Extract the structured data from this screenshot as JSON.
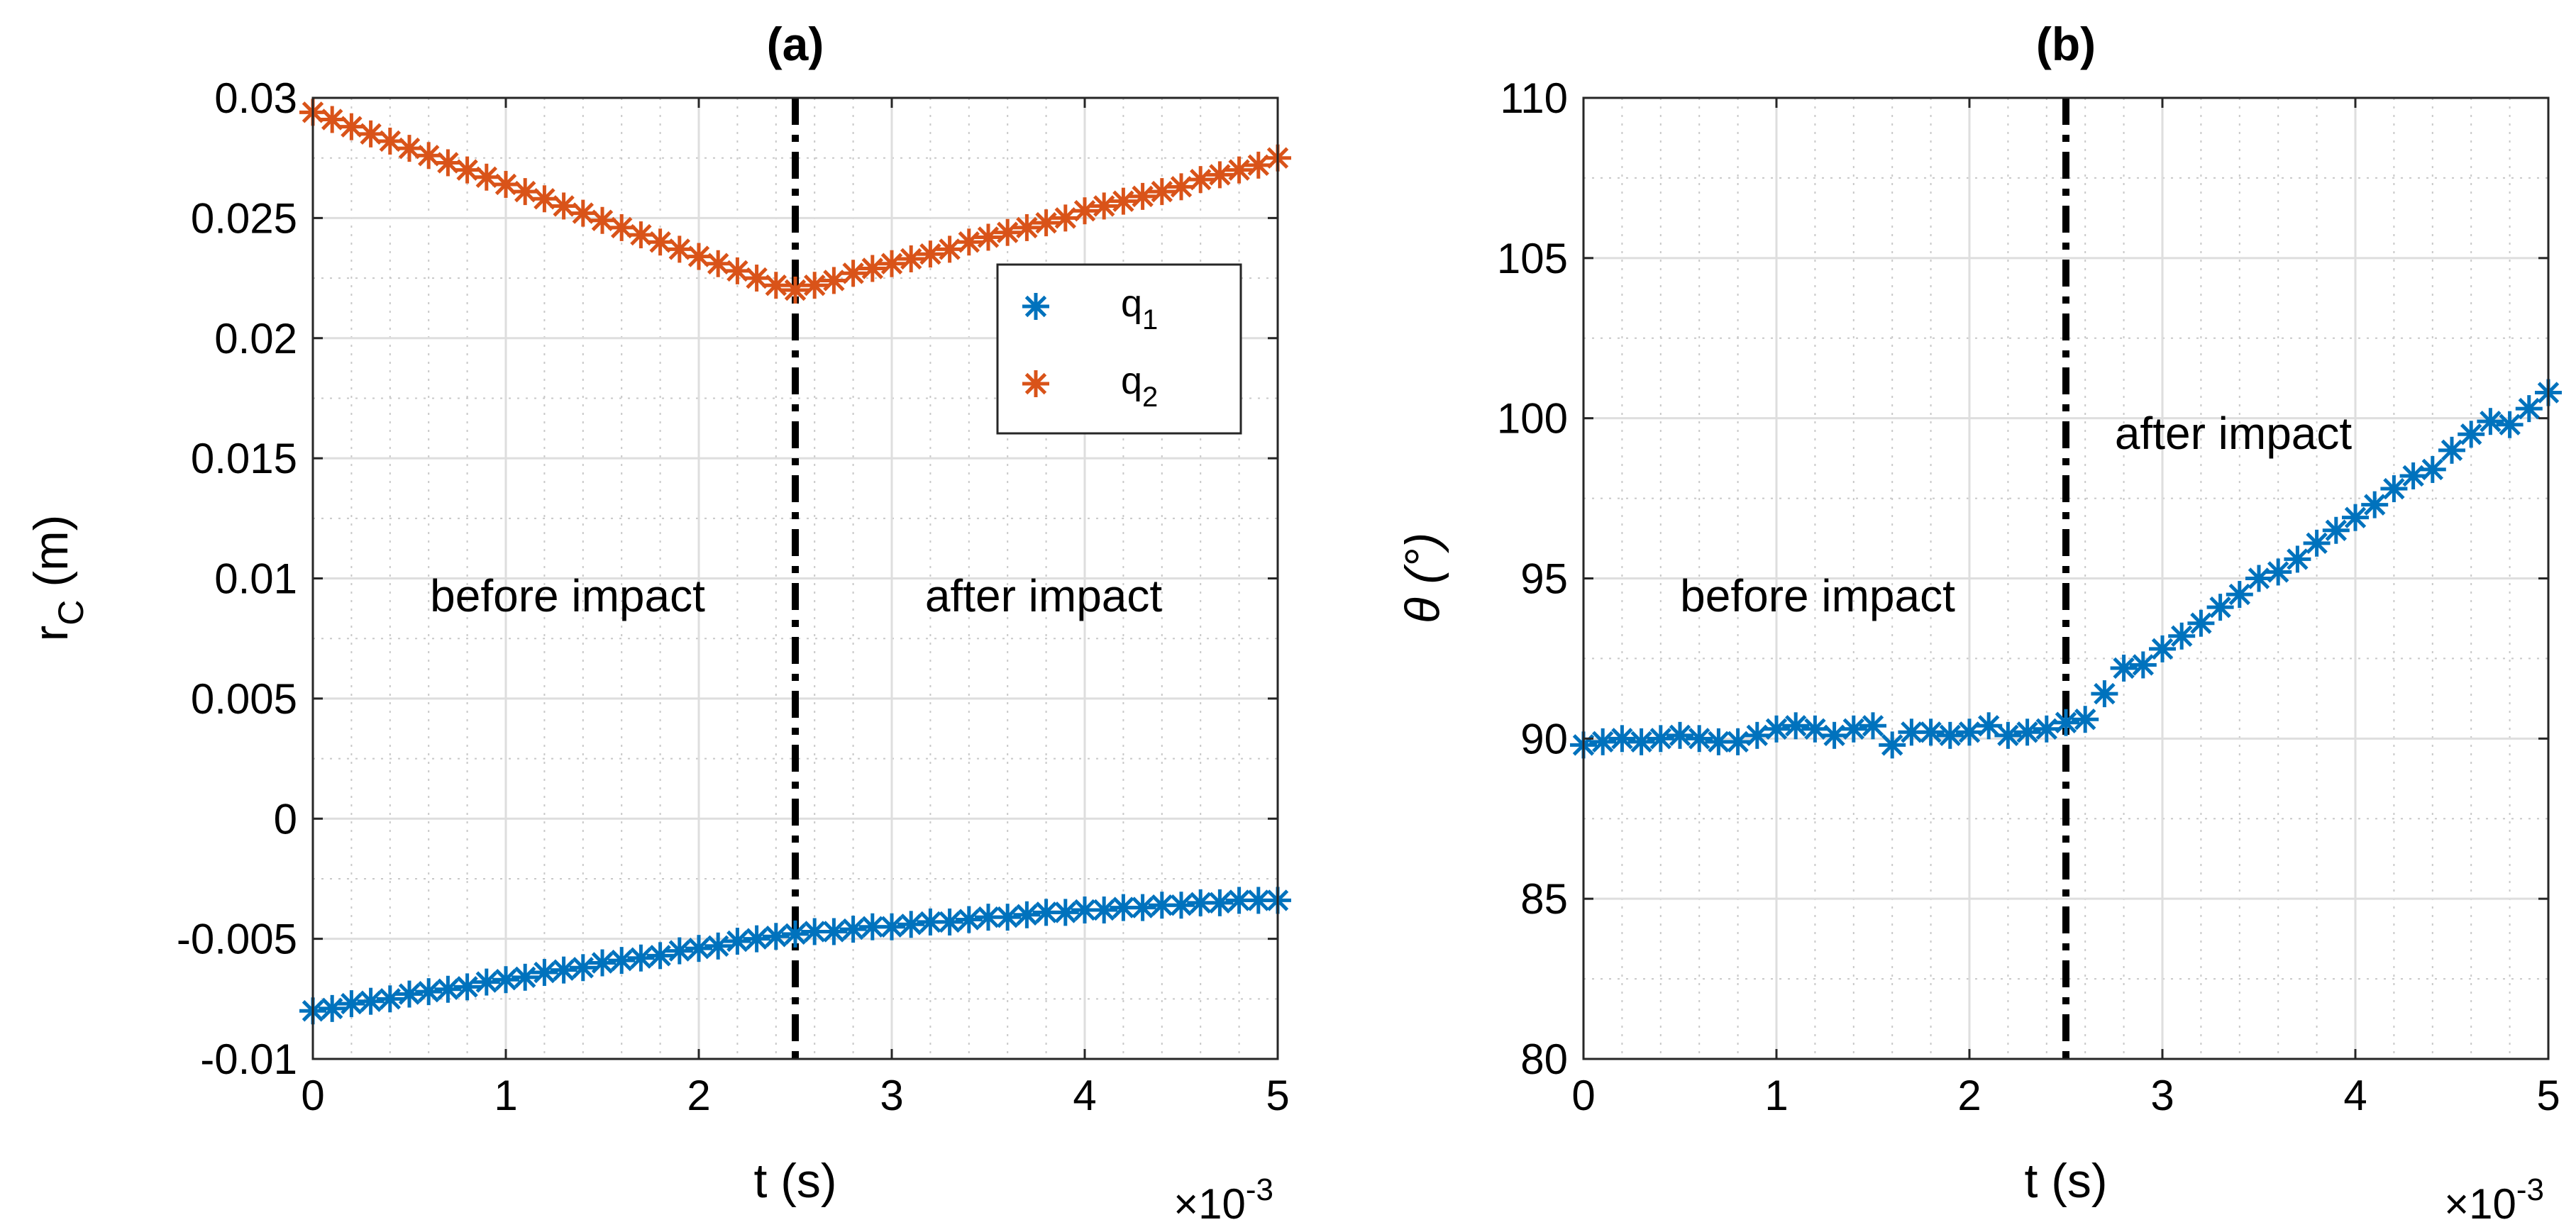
{
  "chart_data": [
    {
      "type": "scatter",
      "title": "(a)",
      "xlabel": "t (s)",
      "ylabel": "r",
      "ylabel_sub": "C",
      "ylabel_unit": "(m)",
      "x_multiplier": "×10",
      "x_multiplier_exp": "-3",
      "xlim": [
        0,
        5
      ],
      "ylim": [
        -0.01,
        0.03
      ],
      "xticks": [
        0,
        1,
        2,
        3,
        4,
        5
      ],
      "xtick_labels": [
        "0",
        "1",
        "2",
        "3",
        "4",
        "5"
      ],
      "yticks": [
        -0.01,
        -0.005,
        0,
        0.005,
        0.01,
        0.015,
        0.02,
        0.025,
        0.03
      ],
      "ytick_labels": [
        "-0.01",
        "-0.005",
        "0",
        "0.005",
        "0.01",
        "0.015",
        "0.02",
        "0.025",
        "0.03"
      ],
      "grid": true,
      "impact_line_x": 2.5,
      "annotations": [
        {
          "text": "before impact",
          "x": 1.35,
          "y": 0.0094
        },
        {
          "text": "after impact",
          "x": 3.8,
          "y": 0.0094
        }
      ],
      "legend": {
        "position": "upper-right",
        "entries": [
          {
            "label": "q",
            "sub": "1",
            "color": "#0072BD"
          },
          {
            "label": "q",
            "sub": "2",
            "color": "#D95319"
          }
        ]
      },
      "series": [
        {
          "name": "q1",
          "color": "#0072BD",
          "x": [
            0.0,
            0.1,
            0.2,
            0.3,
            0.4,
            0.5,
            0.6,
            0.7,
            0.8,
            0.9,
            1.0,
            1.1,
            1.2,
            1.3,
            1.4,
            1.5,
            1.6,
            1.7,
            1.8,
            1.9,
            2.0,
            2.1,
            2.2,
            2.3,
            2.4,
            2.5,
            2.6,
            2.7,
            2.8,
            2.9,
            3.0,
            3.1,
            3.2,
            3.3,
            3.4,
            3.5,
            3.6,
            3.7,
            3.8,
            3.9,
            4.0,
            4.1,
            4.2,
            4.3,
            4.4,
            4.5,
            4.6,
            4.7,
            4.8,
            4.9,
            5.0
          ],
          "y": [
            -0.008,
            -0.0079,
            -0.0077,
            -0.0076,
            -0.0075,
            -0.0073,
            -0.0072,
            -0.0071,
            -0.007,
            -0.0068,
            -0.0067,
            -0.0066,
            -0.0064,
            -0.0063,
            -0.0062,
            -0.006,
            -0.0059,
            -0.0058,
            -0.0057,
            -0.0055,
            -0.0054,
            -0.0053,
            -0.0051,
            -0.005,
            -0.0049,
            -0.0048,
            -0.0047,
            -0.0047,
            -0.0046,
            -0.0045,
            -0.0045,
            -0.0044,
            -0.0043,
            -0.0043,
            -0.0042,
            -0.0041,
            -0.0041,
            -0.004,
            -0.0039,
            -0.0039,
            -0.0038,
            -0.0038,
            -0.0037,
            -0.0037,
            -0.0036,
            -0.0036,
            -0.0035,
            -0.0035,
            -0.0034,
            -0.0034,
            -0.0034
          ]
        },
        {
          "name": "q2",
          "color": "#D95319",
          "x": [
            0.0,
            0.1,
            0.2,
            0.3,
            0.4,
            0.5,
            0.6,
            0.7,
            0.8,
            0.9,
            1.0,
            1.1,
            1.2,
            1.3,
            1.4,
            1.5,
            1.6,
            1.7,
            1.8,
            1.9,
            2.0,
            2.1,
            2.2,
            2.3,
            2.4,
            2.5,
            2.6,
            2.7,
            2.8,
            2.9,
            3.0,
            3.1,
            3.2,
            3.3,
            3.4,
            3.5,
            3.6,
            3.7,
            3.8,
            3.9,
            4.0,
            4.1,
            4.2,
            4.3,
            4.4,
            4.5,
            4.6,
            4.7,
            4.8,
            4.9,
            5.0
          ],
          "y": [
            0.0294,
            0.0291,
            0.0288,
            0.0285,
            0.0282,
            0.0279,
            0.0276,
            0.0273,
            0.027,
            0.0267,
            0.0264,
            0.0261,
            0.0258,
            0.0255,
            0.0252,
            0.0249,
            0.0246,
            0.0243,
            0.024,
            0.0237,
            0.0234,
            0.0231,
            0.0228,
            0.0225,
            0.0222,
            0.022,
            0.0222,
            0.0224,
            0.0227,
            0.0229,
            0.0231,
            0.0233,
            0.0235,
            0.0237,
            0.024,
            0.0242,
            0.0244,
            0.0246,
            0.0248,
            0.025,
            0.0253,
            0.0255,
            0.0257,
            0.0259,
            0.0261,
            0.0263,
            0.0266,
            0.0268,
            0.027,
            0.0272,
            0.0275
          ]
        }
      ]
    },
    {
      "type": "scatter",
      "title": "(b)",
      "xlabel": "t (s)",
      "ylabel": "θ (°)",
      "x_multiplier": "×10",
      "x_multiplier_exp": "-3",
      "xlim": [
        0,
        5
      ],
      "ylim": [
        80,
        110
      ],
      "xticks": [
        0,
        1,
        2,
        3,
        4,
        5
      ],
      "xtick_labels": [
        "0",
        "1",
        "2",
        "3",
        "4",
        "5"
      ],
      "yticks": [
        80,
        85,
        90,
        95,
        100,
        105,
        110
      ],
      "ytick_labels": [
        "80",
        "85",
        "90",
        "95",
        "100",
        "105",
        "110"
      ],
      "grid": true,
      "impact_line_x": 2.5,
      "annotations": [
        {
          "text": "before impact",
          "x": 1.25,
          "y": 94.4
        },
        {
          "text": "after impact",
          "x": 3.65,
          "y": 99.4
        }
      ],
      "series": [
        {
          "name": "q1",
          "color": "#0072BD",
          "x": [
            0.0,
            0.1,
            0.2,
            0.3,
            0.4,
            0.5,
            0.6,
            0.7,
            0.8,
            0.9,
            1.0,
            1.1,
            1.2,
            1.3,
            1.4,
            1.5,
            1.6,
            1.7,
            1.8,
            1.9,
            2.0,
            2.1,
            2.2,
            2.3,
            2.4,
            2.5,
            2.6,
            2.7,
            2.8,
            2.9,
            3.0,
            3.1,
            3.2,
            3.3,
            3.4,
            3.5,
            3.6,
            3.7,
            3.8,
            3.9,
            4.0,
            4.1,
            4.2,
            4.3,
            4.4,
            4.5,
            4.6,
            4.7,
            4.8,
            4.9,
            5.0
          ],
          "y": [
            89.8,
            89.9,
            90.0,
            89.9,
            90.0,
            90.1,
            90.0,
            89.9,
            89.9,
            90.1,
            90.3,
            90.4,
            90.3,
            90.1,
            90.3,
            90.4,
            89.8,
            90.2,
            90.2,
            90.1,
            90.2,
            90.4,
            90.1,
            90.2,
            90.3,
            90.5,
            90.6,
            91.4,
            92.2,
            92.3,
            92.8,
            93.2,
            93.6,
            94.1,
            94.5,
            95.0,
            95.2,
            95.6,
            96.1,
            96.5,
            96.9,
            97.3,
            97.8,
            98.2,
            98.4,
            99.0,
            99.5,
            99.9,
            99.8,
            100.3,
            100.8
          ]
        }
      ]
    }
  ]
}
